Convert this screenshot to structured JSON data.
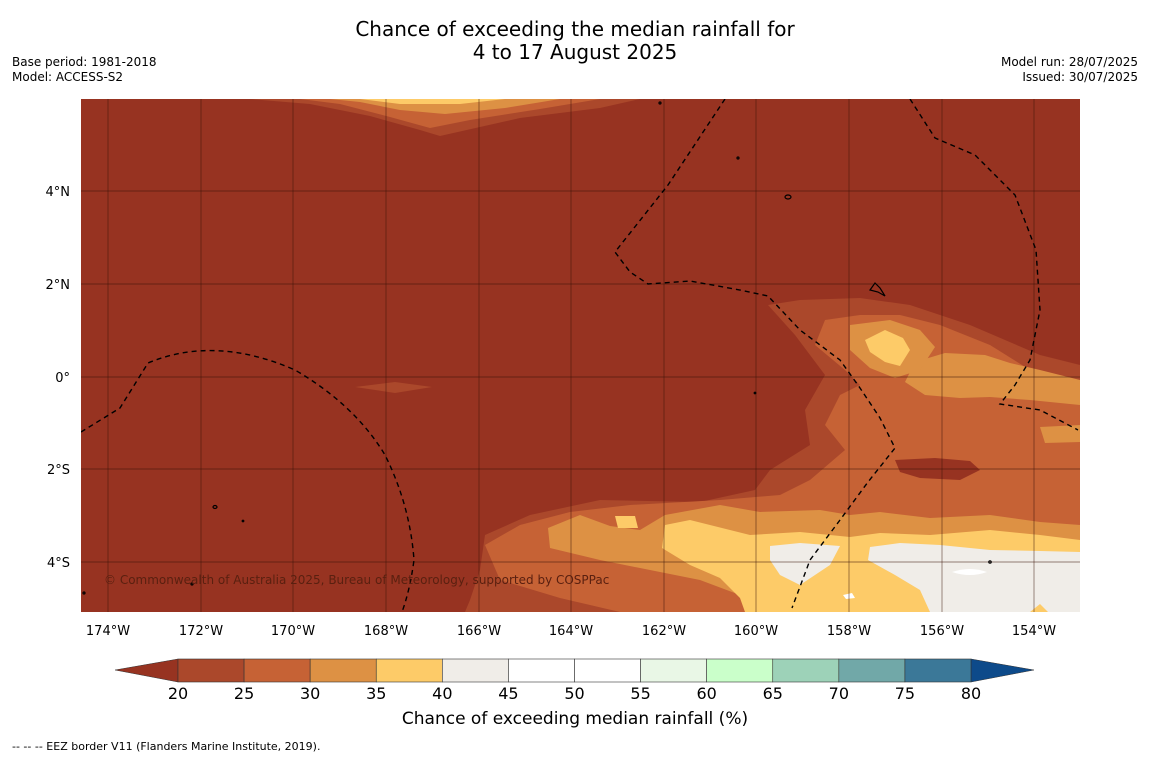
{
  "header": {
    "title_line1": "Chance of exceeding the median rainfall for",
    "title_line2": "4 to 17 August 2025",
    "base_period": "Base period: 1981-2018",
    "model": "Model: ACCESS-S2",
    "model_run": "Model run: 28/07/2025",
    "issued": "Issued: 30/07/2025"
  },
  "map": {
    "lon_ticks": [
      "174°W",
      "172°W",
      "170°W",
      "168°W",
      "166°W",
      "164°W",
      "162°W",
      "160°W",
      "158°W",
      "156°W",
      "154°W"
    ],
    "lat_ticks": [
      "4°N",
      "2°N",
      "0°",
      "2°S",
      "4°S"
    ],
    "copyright": "© Commonwealth of Australia 2025, Bureau of Meteorology, supported by COSPPac",
    "colors": {
      "bg_below_20": "#973321",
      "c20_25": "#ab482b",
      "c25_30": "#c66235",
      "c30_35": "#dd9144",
      "c35_40": "#fdcb68",
      "c40_45": "#f0ede8",
      "eez_line": "#000000"
    }
  },
  "colorbar": {
    "ticks": [
      "20",
      "25",
      "30",
      "35",
      "40",
      "45",
      "50",
      "55",
      "60",
      "65",
      "70",
      "75",
      "80"
    ],
    "colors": [
      "#ab482b",
      "#c66235",
      "#dd9144",
      "#fdcb68",
      "#f0ede8",
      "#ffffff",
      "#ffffff",
      "#e9f7e6",
      "#caffca",
      "#9dd2b8",
      "#71a8a8",
      "#3b7898"
    ],
    "under_color": "#973321",
    "over_color": "#0d4a8a",
    "label": "Chance of exceeding median rainfall (%)"
  },
  "footer": {
    "eez_legend": "--  --  -- EEZ border V11 (Flanders Marine Institute, 2019)."
  }
}
